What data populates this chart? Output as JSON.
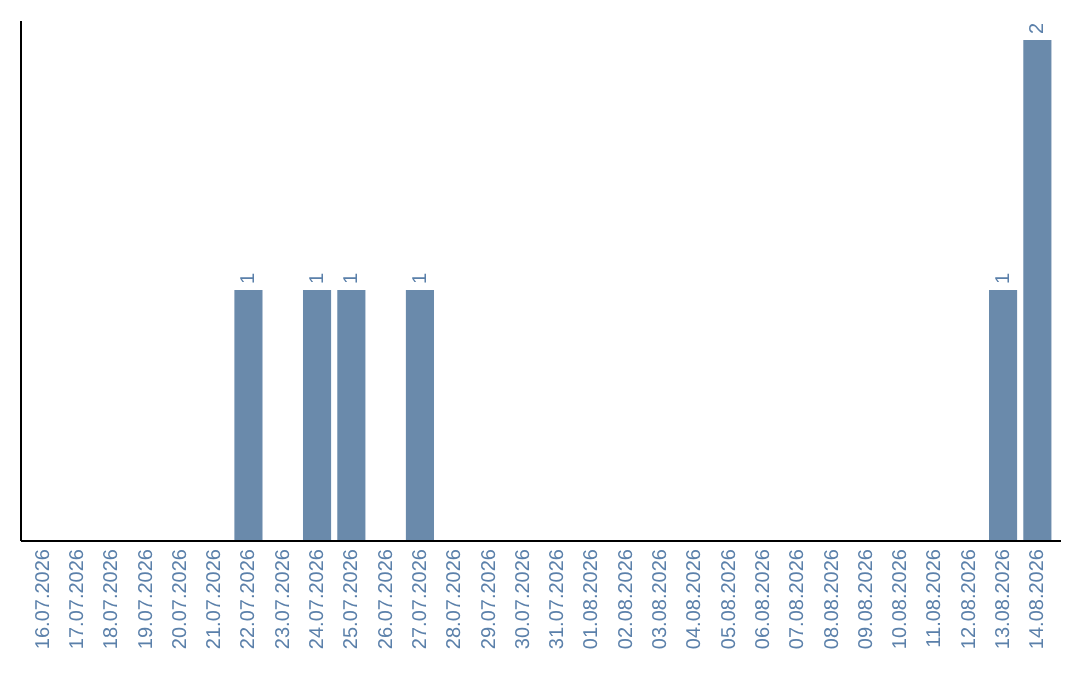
{
  "chart_data": {
    "type": "bar",
    "categories": [
      "16.07.2026",
      "17.07.2026",
      "18.07.2026",
      "19.07.2026",
      "20.07.2026",
      "21.07.2026",
      "22.07.2026",
      "23.07.2026",
      "24.07.2026",
      "25.07.2026",
      "26.07.2026",
      "27.07.2026",
      "28.07.2026",
      "29.07.2026",
      "30.07.2026",
      "31.07.2026",
      "01.08.2026",
      "02.08.2026",
      "03.08.2026",
      "04.08.2026",
      "05.08.2026",
      "06.08.2026",
      "07.08.2026",
      "08.08.2026",
      "09.08.2026",
      "10.08.2026",
      "11.08.2026",
      "12.08.2026",
      "13.08.2026",
      "14.08.2026"
    ],
    "values": [
      0,
      0,
      0,
      0,
      0,
      0,
      1,
      0,
      1,
      1,
      0,
      1,
      0,
      0,
      0,
      0,
      0,
      0,
      0,
      0,
      0,
      0,
      0,
      0,
      0,
      0,
      0,
      0,
      1,
      2
    ],
    "value_labels": [
      null,
      null,
      null,
      null,
      null,
      null,
      "1",
      null,
      "1",
      "1",
      null,
      "1",
      null,
      null,
      null,
      null,
      null,
      null,
      null,
      null,
      null,
      null,
      null,
      null,
      null,
      null,
      null,
      null,
      "1",
      "2"
    ],
    "color": "#6a8aab",
    "ylim": [
      0,
      2.08
    ],
    "tick_labels": "x"
  }
}
